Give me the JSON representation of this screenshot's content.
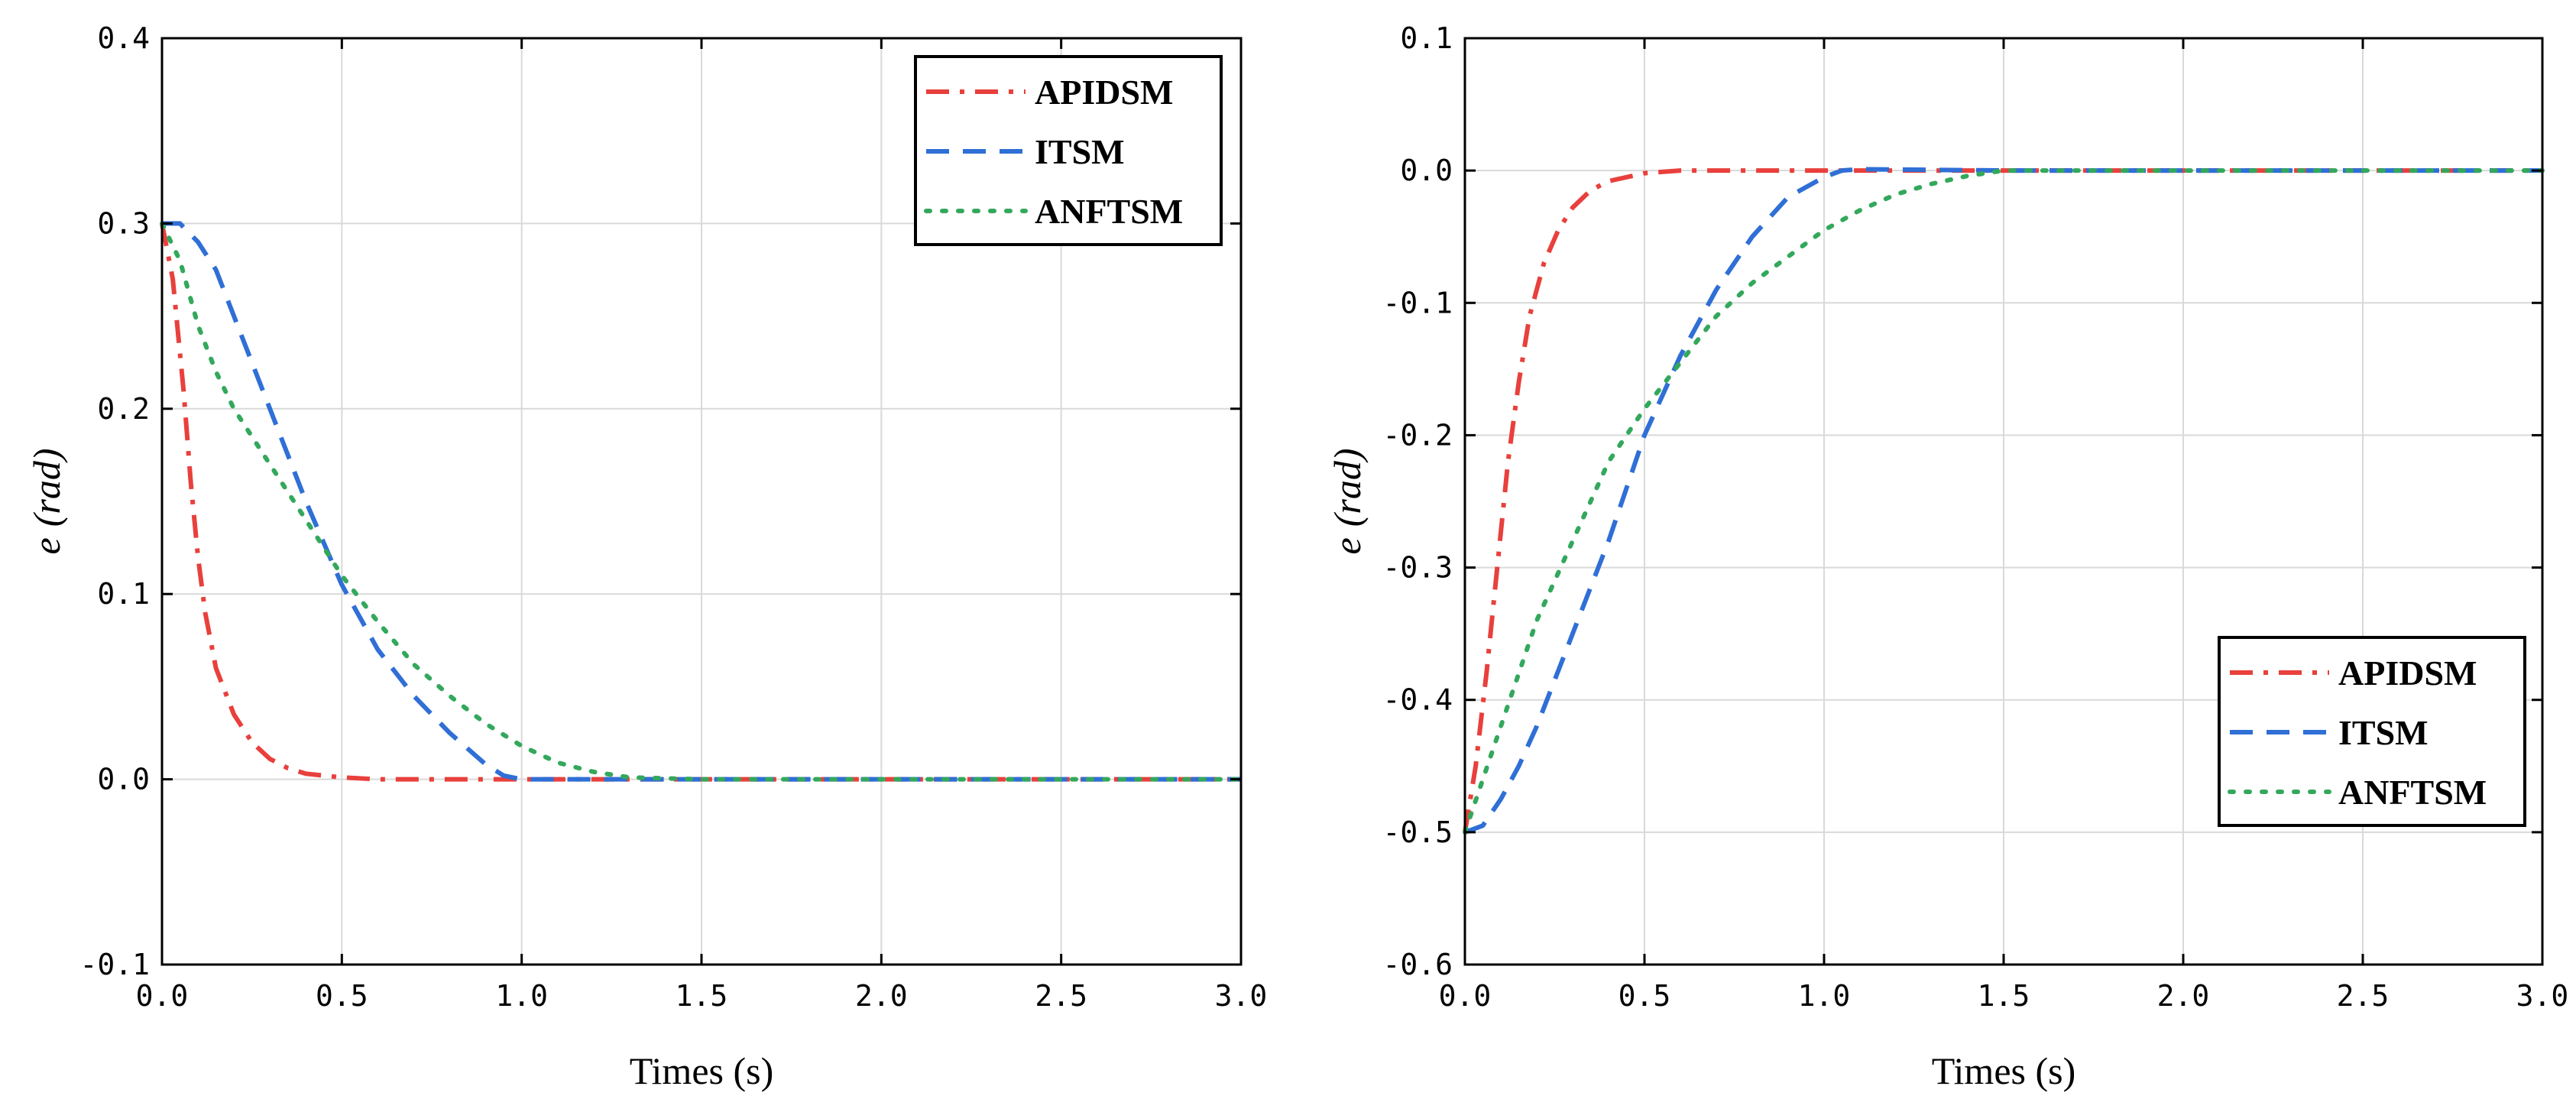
{
  "chart_data": [
    {
      "type": "line",
      "title": "",
      "xlabel": "Times (s)",
      "ylabel_symbol": "e",
      "ylabel_unit": "(rad)",
      "xlim": [
        0.0,
        3.0
      ],
      "ylim": [
        -0.1,
        0.4
      ],
      "xticks": [
        0.0,
        0.5,
        1.0,
        1.5,
        2.0,
        2.5,
        3.0
      ],
      "xtick_labels": [
        "0.0",
        "0.5",
        "1.0",
        "1.5",
        "2.0",
        "2.5",
        "3.0"
      ],
      "yticks": [
        -0.1,
        0.0,
        0.1,
        0.2,
        0.3,
        0.4
      ],
      "ytick_labels": [
        "-0.1",
        "0.0",
        "0.1",
        "0.2",
        "0.3",
        "0.4"
      ],
      "grid": true,
      "legend_position": "top-right",
      "series": [
        {
          "name": "APIDSM",
          "color": "#e8403c",
          "style": "dashdot",
          "x": [
            0.0,
            0.03,
            0.06,
            0.08,
            0.1,
            0.12,
            0.15,
            0.2,
            0.25,
            0.3,
            0.35,
            0.4,
            0.5,
            0.6,
            0.8,
            1.0,
            1.5,
            2.0,
            2.5,
            3.0
          ],
          "y": [
            0.3,
            0.27,
            0.21,
            0.16,
            0.12,
            0.09,
            0.06,
            0.035,
            0.02,
            0.011,
            0.006,
            0.003,
            0.001,
            0.0,
            0.0,
            0.0,
            0.0,
            0.0,
            0.0,
            0.0
          ]
        },
        {
          "name": "ITSM",
          "color": "#2f6fd6",
          "style": "dashed",
          "x": [
            0.0,
            0.05,
            0.1,
            0.15,
            0.2,
            0.3,
            0.4,
            0.5,
            0.6,
            0.7,
            0.8,
            0.9,
            0.95,
            1.0,
            1.1,
            1.5,
            2.0,
            2.5,
            3.0
          ],
          "y": [
            0.3,
            0.3,
            0.29,
            0.275,
            0.25,
            0.2,
            0.15,
            0.105,
            0.07,
            0.045,
            0.025,
            0.008,
            0.002,
            0.0,
            0.0,
            0.0,
            0.0,
            0.0,
            0.0
          ]
        },
        {
          "name": "ANFTSM",
          "color": "#33a85c",
          "style": "dotted",
          "x": [
            0.0,
            0.05,
            0.1,
            0.15,
            0.2,
            0.3,
            0.4,
            0.5,
            0.6,
            0.7,
            0.8,
            0.9,
            1.0,
            1.1,
            1.2,
            1.3,
            1.5,
            2.0,
            2.5,
            3.0
          ],
          "y": [
            0.3,
            0.28,
            0.245,
            0.22,
            0.2,
            0.17,
            0.14,
            0.11,
            0.085,
            0.062,
            0.045,
            0.03,
            0.018,
            0.009,
            0.004,
            0.001,
            0.0,
            0.0,
            0.0,
            0.0
          ]
        }
      ]
    },
    {
      "type": "line",
      "title": "",
      "xlabel": "Times (s)",
      "ylabel_symbol": "e",
      "ylabel_unit": "(rad)",
      "xlim": [
        0.0,
        3.0
      ],
      "ylim": [
        -0.6,
        0.1
      ],
      "xticks": [
        0.0,
        0.5,
        1.0,
        1.5,
        2.0,
        2.5,
        3.0
      ],
      "xtick_labels": [
        "0.0",
        "0.5",
        "1.0",
        "1.5",
        "2.0",
        "2.5",
        "3.0"
      ],
      "yticks": [
        -0.6,
        -0.5,
        -0.4,
        -0.3,
        -0.2,
        -0.1,
        0.0,
        0.1
      ],
      "ytick_labels": [
        "-0.6",
        "-0.5",
        "-0.4",
        "-0.3",
        "-0.2",
        "-0.1",
        "0.0",
        "0.1"
      ],
      "grid": true,
      "legend_position": "bottom-right",
      "series": [
        {
          "name": "APIDSM",
          "color": "#e8403c",
          "style": "dashdot",
          "x": [
            0.0,
            0.03,
            0.06,
            0.09,
            0.12,
            0.15,
            0.18,
            0.22,
            0.26,
            0.3,
            0.35,
            0.4,
            0.5,
            0.6,
            0.8,
            1.0,
            1.5,
            2.0,
            2.5,
            3.0
          ],
          "y": [
            -0.5,
            -0.45,
            -0.38,
            -0.3,
            -0.22,
            -0.16,
            -0.11,
            -0.07,
            -0.045,
            -0.028,
            -0.015,
            -0.008,
            -0.002,
            0.0,
            0.0,
            0.0,
            0.0,
            0.0,
            0.0,
            0.0
          ]
        },
        {
          "name": "ITSM",
          "color": "#2f6fd6",
          "style": "dashed",
          "x": [
            0.0,
            0.05,
            0.1,
            0.15,
            0.2,
            0.3,
            0.4,
            0.5,
            0.6,
            0.7,
            0.8,
            0.9,
            1.0,
            1.05,
            1.1,
            1.5,
            2.0,
            2.5,
            3.0
          ],
          "y": [
            -0.5,
            -0.495,
            -0.475,
            -0.45,
            -0.42,
            -0.35,
            -0.28,
            -0.2,
            -0.14,
            -0.09,
            -0.05,
            -0.02,
            -0.005,
            0.0,
            0.001,
            0.0,
            0.0,
            0.0,
            0.0
          ]
        },
        {
          "name": "ANFTSM",
          "color": "#33a85c",
          "style": "dotted",
          "x": [
            0.0,
            0.05,
            0.1,
            0.15,
            0.2,
            0.3,
            0.4,
            0.5,
            0.6,
            0.7,
            0.8,
            0.9,
            1.0,
            1.1,
            1.2,
            1.3,
            1.4,
            1.5,
            2.0,
            2.5,
            3.0
          ],
          "y": [
            -0.5,
            -0.46,
            -0.42,
            -0.38,
            -0.34,
            -0.28,
            -0.22,
            -0.18,
            -0.145,
            -0.11,
            -0.085,
            -0.065,
            -0.045,
            -0.03,
            -0.018,
            -0.01,
            -0.004,
            0.0,
            0.0,
            0.0,
            0.0
          ]
        }
      ]
    }
  ]
}
